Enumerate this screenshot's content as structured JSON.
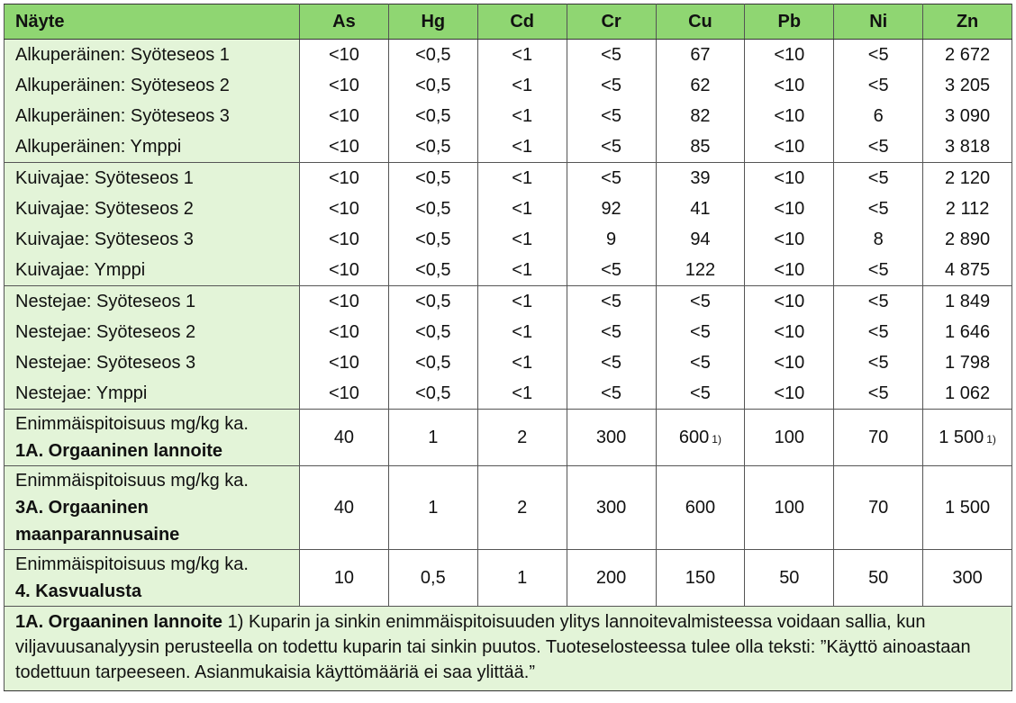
{
  "columns": [
    "Näyte",
    "As",
    "Hg",
    "Cd",
    "Cr",
    "Cu",
    "Pb",
    "Ni",
    "Zn"
  ],
  "groups": [
    {
      "rows": [
        {
          "label": "Alkuperäinen: Syöteseos 1",
          "values": [
            "<10",
            "<0,5",
            "<1",
            "<5",
            "67",
            "<10",
            "<5",
            "2 672"
          ]
        },
        {
          "label": "Alkuperäinen: Syöteseos 2",
          "values": [
            "<10",
            "<0,5",
            "<1",
            "<5",
            "62",
            "<10",
            "<5",
            "3 205"
          ]
        },
        {
          "label": "Alkuperäinen: Syöteseos 3",
          "values": [
            "<10",
            "<0,5",
            "<1",
            "<5",
            "82",
            "<10",
            "6",
            "3 090"
          ]
        },
        {
          "label": "Alkuperäinen: Ymppi",
          "values": [
            "<10",
            "<0,5",
            "<1",
            "<5",
            "85",
            "<10",
            "<5",
            "3 818"
          ]
        }
      ]
    },
    {
      "rows": [
        {
          "label": "Kuivajae: Syöteseos 1",
          "values": [
            "<10",
            "<0,5",
            "<1",
            "<5",
            "39",
            "<10",
            "<5",
            "2 120"
          ]
        },
        {
          "label": "Kuivajae: Syöteseos 2",
          "values": [
            "<10",
            "<0,5",
            "<1",
            "92",
            "41",
            "<10",
            "<5",
            "2 112"
          ]
        },
        {
          "label": "Kuivajae: Syöteseos 3",
          "values": [
            "<10",
            "<0,5",
            "<1",
            "9",
            "94",
            "<10",
            "8",
            "2 890"
          ]
        },
        {
          "label": "Kuivajae: Ymppi",
          "values": [
            "<10",
            "<0,5",
            "<1",
            "<5",
            "122",
            "<10",
            "<5",
            "4 875"
          ]
        }
      ]
    },
    {
      "rows": [
        {
          "label": "Nestejae: Syöteseos 1",
          "values": [
            "<10",
            "<0,5",
            "<1",
            "<5",
            "<5",
            "<10",
            "<5",
            "1 849"
          ]
        },
        {
          "label": "Nestejae: Syöteseos 2",
          "values": [
            "<10",
            "<0,5",
            "<1",
            "<5",
            "<5",
            "<10",
            "<5",
            "1 646"
          ]
        },
        {
          "label": "Nestejae: Syöteseos 3",
          "values": [
            "<10",
            "<0,5",
            "<1",
            "<5",
            "<5",
            "<10",
            "<5",
            "1 798"
          ]
        },
        {
          "label": "Nestejae: Ymppi",
          "values": [
            "<10",
            "<0,5",
            "<1",
            "<5",
            "<5",
            "<10",
            "<5",
            "1 062"
          ]
        }
      ]
    }
  ],
  "limits": [
    {
      "prefix": "Enimmäispitoisuus mg/kg ka.",
      "name": "1A. Orgaaninen lannoite",
      "values": [
        "40",
        "1",
        "2",
        "300",
        "600",
        "100",
        "70",
        "1 500"
      ],
      "notes": [
        "",
        "",
        "",
        "",
        "1)",
        "",
        "",
        "1)"
      ]
    },
    {
      "prefix": "Enimmäispitoisuus mg/kg ka.",
      "name": "3A. Orgaaninen maanparannusaine",
      "values": [
        "40",
        "1",
        "2",
        "300",
        "600",
        "100",
        "70",
        "1 500"
      ],
      "notes": [
        "",
        "",
        "",
        "",
        "",
        "",
        "",
        ""
      ]
    },
    {
      "prefix": "Enimmäispitoisuus mg/kg ka.",
      "name": "4. Kasvualusta",
      "values": [
        "10",
        "0,5",
        "1",
        "200",
        "150",
        "50",
        "50",
        "300"
      ],
      "notes": [
        "",
        "",
        "",
        "",
        "",
        "",
        "",
        ""
      ]
    }
  ],
  "footnote": {
    "title": "1A. Orgaaninen lannoite",
    "text": " 1) Kuparin ja sinkin enimmäispitoisuuden ylitys lannoitevalmisteessa voidaan sallia, kun viljavuusanalyysin perusteella on todettu kuparin tai sinkin puutos. Tuoteselosteessa tulee olla teksti: ”Käyttö ainoastaan todettuun tarpeeseen. Asianmukaisia käyttömääriä ei saa ylittää.”"
  },
  "colors": {
    "header_bg": "#8fd672",
    "label_bg": "#e3f4d8"
  }
}
